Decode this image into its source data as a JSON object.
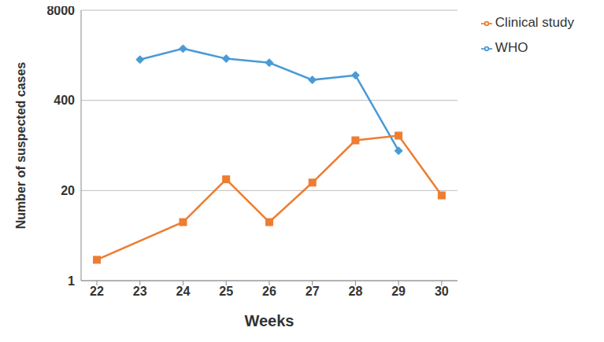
{
  "chart_data": {
    "type": "line",
    "x_label": "Weeks",
    "y_label": "Number of suspected cases",
    "categories": [
      "22",
      "23",
      "24",
      "25",
      "26",
      "27",
      "28",
      "29",
      "30"
    ],
    "series": [
      {
        "name": "WHO",
        "color": "#4a9ad6",
        "marker": "diamond",
        "values": [
          null,
          1550,
          2230,
          1600,
          1400,
          790,
          920,
          75,
          null
        ]
      },
      {
        "name": "Clinical study",
        "color": "#ed7d31",
        "marker": "square",
        "values": [
          2,
          null,
          7,
          29,
          7,
          26,
          106,
          124,
          17
        ]
      }
    ],
    "log": "y",
    "ylim": [
      1,
      8000
    ],
    "yticks": [
      1,
      20,
      400,
      8000
    ],
    "grid": true,
    "legend": "upper right"
  }
}
